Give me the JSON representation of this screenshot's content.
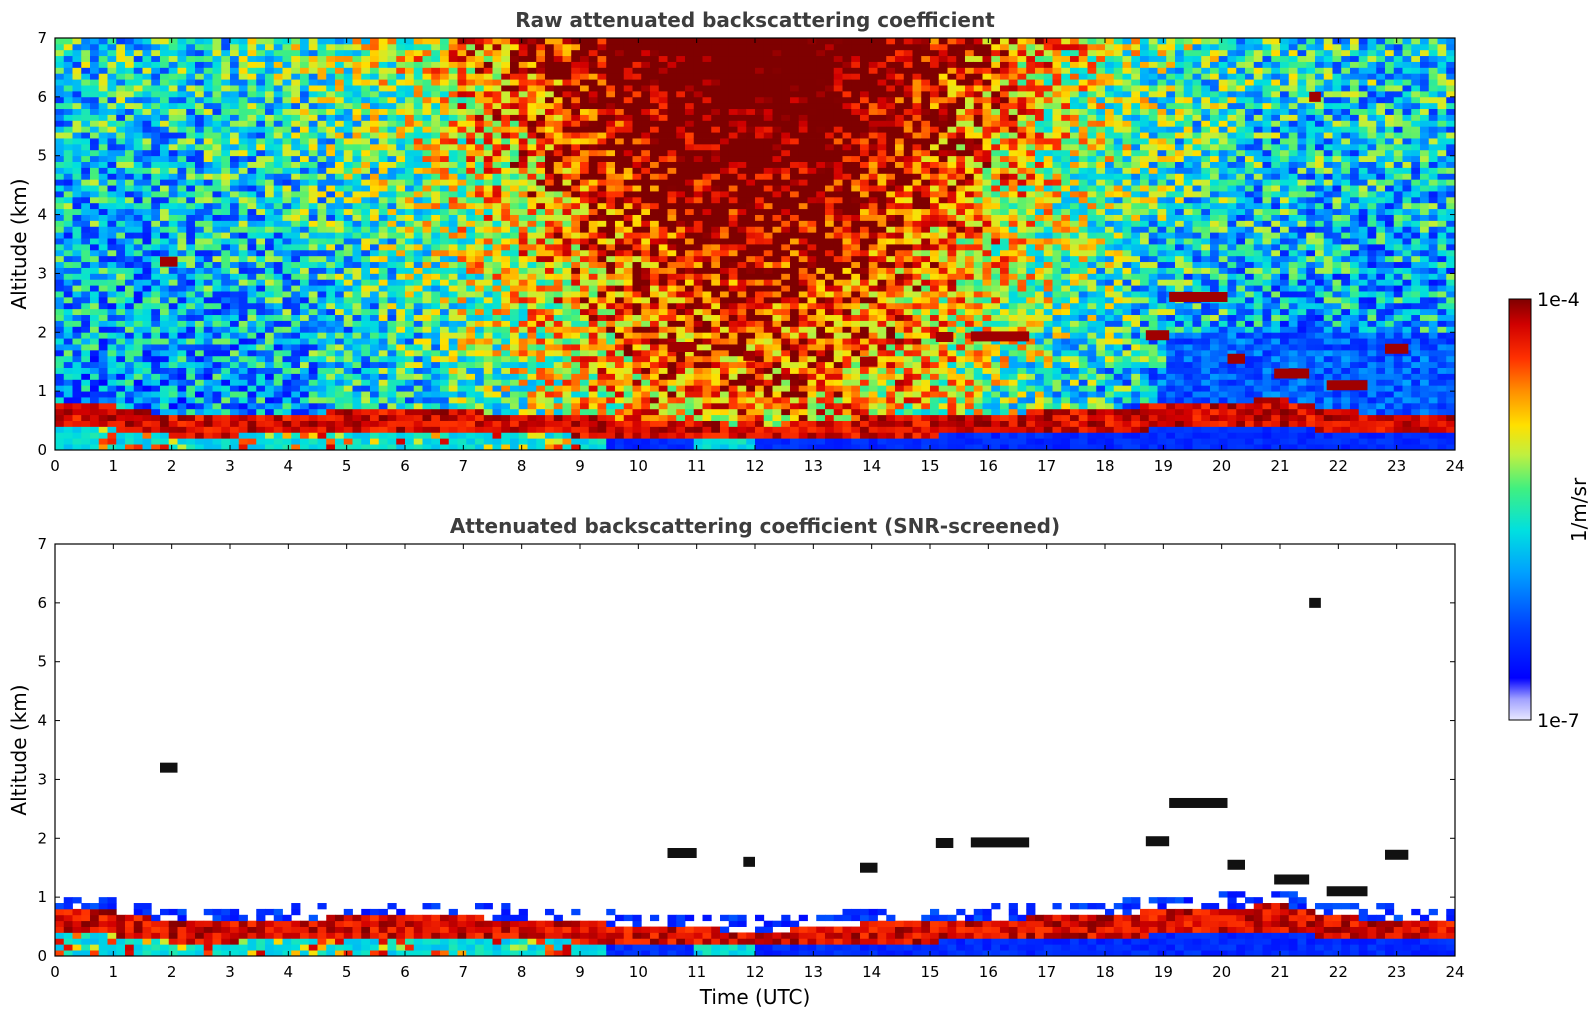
{
  "chart_data": [
    {
      "type": "heatmap",
      "title": "Raw attenuated backscattering coefficient",
      "xlabel": "",
      "ylabel": "Altitude (km)",
      "xlim": [
        0,
        24
      ],
      "ylim": [
        0,
        7
      ],
      "xticks": [
        "0",
        "1",
        "2",
        "3",
        "4",
        "5",
        "6",
        "7",
        "8",
        "9",
        "10",
        "11",
        "12",
        "13",
        "14",
        "15",
        "16",
        "17",
        "18",
        "19",
        "20",
        "21",
        "22",
        "23",
        "24"
      ],
      "yticks": [
        "0",
        "1",
        "2",
        "3",
        "4",
        "5",
        "6",
        "7"
      ],
      "grid": false,
      "boundary_layer_top_km": [
        [
          0,
          0.7
        ],
        [
          1,
          0.65
        ],
        [
          2,
          0.45
        ],
        [
          3,
          0.45
        ],
        [
          4,
          0.5
        ],
        [
          5,
          0.55
        ],
        [
          6,
          0.55
        ],
        [
          7,
          0.55
        ],
        [
          8,
          0.5
        ],
        [
          9,
          0.45
        ],
        [
          10,
          0.4
        ],
        [
          11,
          0.35
        ],
        [
          12,
          0.3
        ],
        [
          13,
          0.35
        ],
        [
          14,
          0.45
        ],
        [
          15,
          0.45
        ],
        [
          16,
          0.5
        ],
        [
          17,
          0.55
        ],
        [
          18,
          0.6
        ],
        [
          19,
          0.65
        ],
        [
          20,
          0.7
        ],
        [
          21,
          0.75
        ],
        [
          22,
          0.55
        ],
        [
          23,
          0.5
        ],
        [
          24,
          0.5
        ]
      ],
      "cloud_layers": [
        {
          "t0": 1.8,
          "t1": 2.1,
          "z": 3.2
        },
        {
          "t0": 10.5,
          "t1": 11.0,
          "z": 1.75
        },
        {
          "t0": 11.8,
          "t1": 12.0,
          "z": 1.6
        },
        {
          "t0": 13.8,
          "t1": 14.1,
          "z": 1.5
        },
        {
          "t0": 15.1,
          "t1": 15.4,
          "z": 1.92
        },
        {
          "t0": 15.7,
          "t1": 16.7,
          "z": 1.93
        },
        {
          "t0": 18.7,
          "t1": 19.1,
          "z": 1.95
        },
        {
          "t0": 19.1,
          "t1": 20.1,
          "z": 2.6
        },
        {
          "t0": 20.1,
          "t1": 20.4,
          "z": 1.55
        },
        {
          "t0": 20.9,
          "t1": 21.5,
          "z": 1.3
        },
        {
          "t0": 21.8,
          "t1": 22.5,
          "z": 1.1
        },
        {
          "t0": 22.8,
          "t1": 23.2,
          "z": 1.72
        },
        {
          "t0": 21.5,
          "t1": 21.7,
          "z": 6.0
        }
      ]
    },
    {
      "type": "heatmap",
      "title": "Attenuated backscattering coefficient (SNR-screened)",
      "xlabel": "Time (UTC)",
      "ylabel": "Altitude (km)",
      "xlim": [
        0,
        24
      ],
      "ylim": [
        0,
        7
      ],
      "xticks": [
        "0",
        "1",
        "2",
        "3",
        "4",
        "5",
        "6",
        "7",
        "8",
        "9",
        "10",
        "11",
        "12",
        "13",
        "14",
        "15",
        "16",
        "17",
        "18",
        "19",
        "20",
        "21",
        "22",
        "23",
        "24"
      ],
      "yticks": [
        "0",
        "1",
        "2",
        "3",
        "4",
        "5",
        "6",
        "7"
      ],
      "grid": false
    }
  ],
  "colorbar": {
    "min_label": "1e-7",
    "max_label": "1e-4",
    "label": "1/m/sr",
    "scale": "log",
    "colormap": [
      "#7f0000",
      "#d51200",
      "#ff6a00",
      "#ffd200",
      "#c9f53a",
      "#3ef2b8",
      "#00b4ff",
      "#0040ff",
      "#0000d0",
      "#e8e8ff"
    ]
  }
}
